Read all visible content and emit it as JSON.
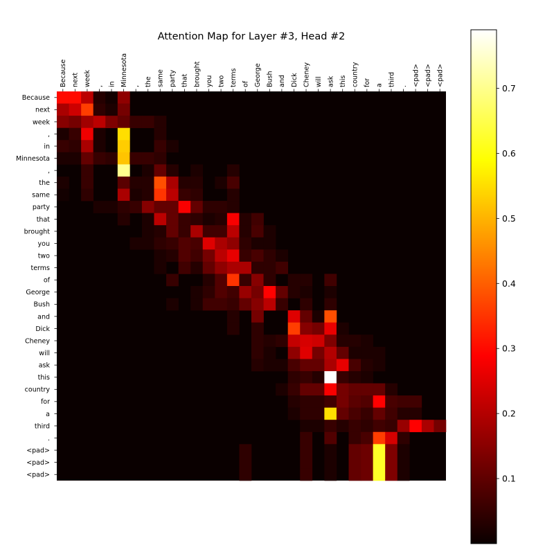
{
  "chart_data": {
    "type": "heatmap",
    "title": "Attention Map for Layer #3, Head #2",
    "x_tokens": [
      "Because",
      "next",
      "week",
      ",",
      "in",
      "Minnesota",
      ",",
      "the",
      "same",
      "party",
      "that",
      "brought",
      "you",
      "two",
      "terms",
      "of",
      "George",
      "Bush",
      "and",
      "Dick",
      "Cheney",
      "will",
      "ask",
      "this",
      "country",
      "for",
      "a",
      "third",
      ".",
      "<pad>",
      "<pad>",
      "<pad>"
    ],
    "y_tokens": [
      "Because",
      "next",
      "week",
      ",",
      "in",
      "Minnesota",
      ",",
      "the",
      "same",
      "party",
      "that",
      "brought",
      "you",
      "two",
      "terms",
      "of",
      "George",
      "Bush",
      "and",
      "Dick",
      "Cheney",
      "will",
      "ask",
      "this",
      "country",
      "for",
      "a",
      "third",
      ".",
      "<pad>",
      "<pad>",
      "<pad>"
    ],
    "colormap": "hot",
    "colorbar": {
      "min": 0.0,
      "max": 0.79,
      "ticks": [
        0.1,
        0.2,
        0.3,
        0.4,
        0.5,
        0.6,
        0.7
      ]
    },
    "cells": [
      [
        0,
        0,
        0.3
      ],
      [
        0,
        1,
        0.3
      ],
      [
        0,
        2,
        0.2
      ],
      [
        0,
        3,
        0.03
      ],
      [
        0,
        4,
        0.01
      ],
      [
        0,
        5,
        0.15
      ],
      [
        1,
        0,
        0.18
      ],
      [
        1,
        1,
        0.22
      ],
      [
        1,
        2,
        0.36
      ],
      [
        1,
        3,
        0.04
      ],
      [
        1,
        4,
        0.02
      ],
      [
        1,
        5,
        0.12
      ],
      [
        2,
        0,
        0.14
      ],
      [
        2,
        1,
        0.12
      ],
      [
        2,
        2,
        0.17
      ],
      [
        2,
        3,
        0.2
      ],
      [
        2,
        4,
        0.13
      ],
      [
        2,
        5,
        0.1
      ],
      [
        2,
        6,
        0.05
      ],
      [
        2,
        7,
        0.05
      ],
      [
        2,
        8,
        0.03
      ],
      [
        3,
        0,
        0.02
      ],
      [
        3,
        1,
        0.05
      ],
      [
        3,
        2,
        0.26
      ],
      [
        3,
        3,
        0.02
      ],
      [
        3,
        5,
        0.55
      ],
      [
        3,
        8,
        0.03
      ],
      [
        4,
        0,
        0.05
      ],
      [
        4,
        1,
        0.04
      ],
      [
        4,
        2,
        0.18
      ],
      [
        4,
        3,
        0.02
      ],
      [
        4,
        5,
        0.53
      ],
      [
        4,
        8,
        0.05
      ],
      [
        4,
        9,
        0.02
      ],
      [
        5,
        0,
        0.02
      ],
      [
        5,
        1,
        0.02
      ],
      [
        5,
        2,
        0.1
      ],
      [
        5,
        3,
        0.05
      ],
      [
        5,
        4,
        0.04
      ],
      [
        5,
        5,
        0.52
      ],
      [
        5,
        6,
        0.05
      ],
      [
        5,
        7,
        0.05
      ],
      [
        5,
        8,
        0.04
      ],
      [
        6,
        2,
        0.05
      ],
      [
        6,
        5,
        0.7
      ],
      [
        6,
        7,
        0.02
      ],
      [
        6,
        8,
        0.1
      ],
      [
        6,
        9,
        0.03
      ],
      [
        6,
        11,
        0.02
      ],
      [
        6,
        14,
        0.03
      ],
      [
        7,
        0,
        0.02
      ],
      [
        7,
        2,
        0.05
      ],
      [
        7,
        5,
        0.09
      ],
      [
        7,
        6,
        0.03
      ],
      [
        7,
        7,
        0.03
      ],
      [
        7,
        8,
        0.38
      ],
      [
        7,
        9,
        0.18
      ],
      [
        7,
        10,
        0.03
      ],
      [
        7,
        11,
        0.03
      ],
      [
        7,
        13,
        0.02
      ],
      [
        7,
        14,
        0.07
      ],
      [
        8,
        0,
        0.01
      ],
      [
        8,
        2,
        0.04
      ],
      [
        8,
        5,
        0.18
      ],
      [
        8,
        6,
        0.02
      ],
      [
        8,
        7,
        0.03
      ],
      [
        8,
        8,
        0.35
      ],
      [
        8,
        9,
        0.2
      ],
      [
        8,
        10,
        0.05
      ],
      [
        8,
        11,
        0.04
      ],
      [
        8,
        14,
        0.03
      ],
      [
        9,
        3,
        0.02
      ],
      [
        9,
        4,
        0.02
      ],
      [
        9,
        5,
        0.04
      ],
      [
        9,
        6,
        0.05
      ],
      [
        9,
        7,
        0.14
      ],
      [
        9,
        8,
        0.1
      ],
      [
        9,
        9,
        0.1
      ],
      [
        9,
        10,
        0.27
      ],
      [
        9,
        11,
        0.1
      ],
      [
        9,
        12,
        0.04
      ],
      [
        9,
        13,
        0.04
      ],
      [
        9,
        14,
        0.03
      ],
      [
        10,
        5,
        0.03
      ],
      [
        10,
        7,
        0.02
      ],
      [
        10,
        8,
        0.2
      ],
      [
        10,
        9,
        0.1
      ],
      [
        10,
        10,
        0.05
      ],
      [
        10,
        11,
        0.04
      ],
      [
        10,
        12,
        0.02
      ],
      [
        10,
        13,
        0.03
      ],
      [
        10,
        14,
        0.27
      ],
      [
        10,
        15,
        0.03
      ],
      [
        10,
        16,
        0.06
      ],
      [
        11,
        7,
        0.02
      ],
      [
        11,
        8,
        0.03
      ],
      [
        11,
        9,
        0.1
      ],
      [
        11,
        10,
        0.05
      ],
      [
        11,
        11,
        0.18
      ],
      [
        11,
        12,
        0.06
      ],
      [
        11,
        13,
        0.06
      ],
      [
        11,
        14,
        0.2
      ],
      [
        11,
        15,
        0.03
      ],
      [
        11,
        16,
        0.07
      ],
      [
        11,
        17,
        0.02
      ],
      [
        12,
        6,
        0.02
      ],
      [
        12,
        7,
        0.02
      ],
      [
        12,
        8,
        0.04
      ],
      [
        12,
        9,
        0.05
      ],
      [
        12,
        10,
        0.08
      ],
      [
        12,
        11,
        0.07
      ],
      [
        12,
        12,
        0.24
      ],
      [
        12,
        13,
        0.18
      ],
      [
        12,
        14,
        0.15
      ],
      [
        12,
        15,
        0.04
      ],
      [
        12,
        16,
        0.02
      ],
      [
        12,
        17,
        0.02
      ],
      [
        13,
        8,
        0.02
      ],
      [
        13,
        9,
        0.03
      ],
      [
        13,
        10,
        0.08
      ],
      [
        13,
        11,
        0.06
      ],
      [
        13,
        12,
        0.12
      ],
      [
        13,
        13,
        0.2
      ],
      [
        13,
        14,
        0.25
      ],
      [
        13,
        15,
        0.05
      ],
      [
        13,
        16,
        0.07
      ],
      [
        13,
        17,
        0.04
      ],
      [
        13,
        18,
        0.02
      ],
      [
        14,
        8,
        0.02
      ],
      [
        14,
        10,
        0.06
      ],
      [
        14,
        11,
        0.03
      ],
      [
        14,
        12,
        0.1
      ],
      [
        14,
        13,
        0.15
      ],
      [
        14,
        14,
        0.18
      ],
      [
        14,
        15,
        0.18
      ],
      [
        14,
        16,
        0.04
      ],
      [
        14,
        17,
        0.04
      ],
      [
        14,
        18,
        0.06
      ],
      [
        15,
        9,
        0.05
      ],
      [
        15,
        12,
        0.03
      ],
      [
        15,
        13,
        0.08
      ],
      [
        15,
        14,
        0.35
      ],
      [
        15,
        15,
        0.05
      ],
      [
        15,
        16,
        0.14
      ],
      [
        15,
        17,
        0.04
      ],
      [
        15,
        19,
        0.03
      ],
      [
        15,
        20,
        0.03
      ],
      [
        15,
        22,
        0.06
      ],
      [
        16,
        11,
        0.02
      ],
      [
        16,
        12,
        0.04
      ],
      [
        16,
        13,
        0.08
      ],
      [
        16,
        14,
        0.06
      ],
      [
        16,
        15,
        0.16
      ],
      [
        16,
        16,
        0.12
      ],
      [
        16,
        17,
        0.29
      ],
      [
        16,
        18,
        0.1
      ],
      [
        16,
        19,
        0.03
      ],
      [
        16,
        20,
        0.02
      ],
      [
        16,
        22,
        0.02
      ],
      [
        17,
        9,
        0.02
      ],
      [
        17,
        11,
        0.02
      ],
      [
        17,
        12,
        0.06
      ],
      [
        17,
        13,
        0.06
      ],
      [
        17,
        14,
        0.05
      ],
      [
        17,
        15,
        0.1
      ],
      [
        17,
        16,
        0.14
      ],
      [
        17,
        17,
        0.2
      ],
      [
        17,
        18,
        0.05
      ],
      [
        17,
        20,
        0.04
      ],
      [
        17,
        22,
        0.04
      ],
      [
        18,
        14,
        0.03
      ],
      [
        18,
        16,
        0.12
      ],
      [
        18,
        19,
        0.24
      ],
      [
        18,
        20,
        0.1
      ],
      [
        18,
        21,
        0.02
      ],
      [
        18,
        22,
        0.38
      ],
      [
        19,
        14,
        0.03
      ],
      [
        19,
        16,
        0.04
      ],
      [
        19,
        19,
        0.36
      ],
      [
        19,
        20,
        0.14
      ],
      [
        19,
        21,
        0.12
      ],
      [
        19,
        22,
        0.25
      ],
      [
        19,
        23,
        0.02
      ],
      [
        20,
        16,
        0.04
      ],
      [
        20,
        17,
        0.03
      ],
      [
        20,
        18,
        0.04
      ],
      [
        20,
        19,
        0.21
      ],
      [
        20,
        20,
        0.23
      ],
      [
        20,
        21,
        0.22
      ],
      [
        20,
        22,
        0.13
      ],
      [
        20,
        23,
        0.03
      ],
      [
        20,
        24,
        0.03
      ],
      [
        20,
        25,
        0.02
      ],
      [
        21,
        16,
        0.04
      ],
      [
        21,
        17,
        0.02
      ],
      [
        21,
        19,
        0.15
      ],
      [
        21,
        20,
        0.24
      ],
      [
        21,
        21,
        0.12
      ],
      [
        21,
        22,
        0.19
      ],
      [
        21,
        23,
        0.1
      ],
      [
        21,
        24,
        0.02
      ],
      [
        21,
        25,
        0.02
      ],
      [
        21,
        26,
        0.02
      ],
      [
        22,
        16,
        0.03
      ],
      [
        22,
        17,
        0.02
      ],
      [
        22,
        18,
        0.02
      ],
      [
        22,
        19,
        0.07
      ],
      [
        22,
        20,
        0.1
      ],
      [
        22,
        21,
        0.1
      ],
      [
        22,
        22,
        0.18
      ],
      [
        22,
        23,
        0.25
      ],
      [
        22,
        24,
        0.07
      ],
      [
        22,
        25,
        0.03
      ],
      [
        22,
        26,
        0.02
      ],
      [
        23,
        19,
        0.04
      ],
      [
        23,
        20,
        0.05
      ],
      [
        23,
        21,
        0.03
      ],
      [
        23,
        22,
        0.79
      ],
      [
        23,
        23,
        0.05
      ],
      [
        23,
        24,
        0.03
      ],
      [
        23,
        25,
        0.02
      ],
      [
        24,
        18,
        0.02
      ],
      [
        24,
        19,
        0.05
      ],
      [
        24,
        20,
        0.1
      ],
      [
        24,
        21,
        0.1
      ],
      [
        24,
        22,
        0.27
      ],
      [
        24,
        23,
        0.12
      ],
      [
        24,
        24,
        0.1
      ],
      [
        24,
        25,
        0.1
      ],
      [
        24,
        26,
        0.1
      ],
      [
        24,
        27,
        0.03
      ],
      [
        25,
        19,
        0.03
      ],
      [
        25,
        20,
        0.04
      ],
      [
        25,
        21,
        0.04
      ],
      [
        25,
        22,
        0.06
      ],
      [
        25,
        23,
        0.12
      ],
      [
        25,
        24,
        0.09
      ],
      [
        25,
        25,
        0.08
      ],
      [
        25,
        26,
        0.28
      ],
      [
        25,
        27,
        0.07
      ],
      [
        25,
        28,
        0.06
      ],
      [
        25,
        29,
        0.06
      ],
      [
        26,
        19,
        0.02
      ],
      [
        26,
        20,
        0.04
      ],
      [
        26,
        21,
        0.04
      ],
      [
        26,
        22,
        0.55
      ],
      [
        26,
        23,
        0.1
      ],
      [
        26,
        24,
        0.07
      ],
      [
        26,
        25,
        0.05
      ],
      [
        26,
        26,
        0.1
      ],
      [
        26,
        27,
        0.06
      ],
      [
        26,
        28,
        0.03
      ],
      [
        26,
        29,
        0.03
      ],
      [
        27,
        20,
        0.02
      ],
      [
        27,
        21,
        0.02
      ],
      [
        27,
        22,
        0.05
      ],
      [
        27,
        23,
        0.03
      ],
      [
        27,
        24,
        0.05
      ],
      [
        27,
        25,
        0.04
      ],
      [
        27,
        26,
        0.06
      ],
      [
        27,
        27,
        0.05
      ],
      [
        27,
        28,
        0.16
      ],
      [
        27,
        29,
        0.28
      ],
      [
        27,
        30,
        0.18
      ],
      [
        27,
        31,
        0.12
      ],
      [
        28,
        20,
        0.05
      ],
      [
        28,
        22,
        0.08
      ],
      [
        28,
        24,
        0.05
      ],
      [
        28,
        25,
        0.07
      ],
      [
        28,
        26,
        0.36
      ],
      [
        28,
        27,
        0.23
      ],
      [
        28,
        28,
        0.04
      ],
      [
        29,
        15,
        0.04
      ],
      [
        29,
        20,
        0.05
      ],
      [
        29,
        22,
        0.02
      ],
      [
        29,
        24,
        0.1
      ],
      [
        29,
        25,
        0.11
      ],
      [
        29,
        26,
        0.62
      ],
      [
        29,
        27,
        0.13
      ],
      [
        29,
        28,
        0.02
      ],
      [
        30,
        15,
        0.04
      ],
      [
        30,
        20,
        0.05
      ],
      [
        30,
        22,
        0.02
      ],
      [
        30,
        24,
        0.1
      ],
      [
        30,
        25,
        0.11
      ],
      [
        30,
        26,
        0.62
      ],
      [
        30,
        27,
        0.13
      ],
      [
        30,
        28,
        0.02
      ],
      [
        31,
        15,
        0.04
      ],
      [
        31,
        20,
        0.05
      ],
      [
        31,
        22,
        0.02
      ],
      [
        31,
        24,
        0.1
      ],
      [
        31,
        25,
        0.11
      ],
      [
        31,
        26,
        0.62
      ],
      [
        31,
        27,
        0.13
      ],
      [
        31,
        28,
        0.02
      ]
    ]
  }
}
